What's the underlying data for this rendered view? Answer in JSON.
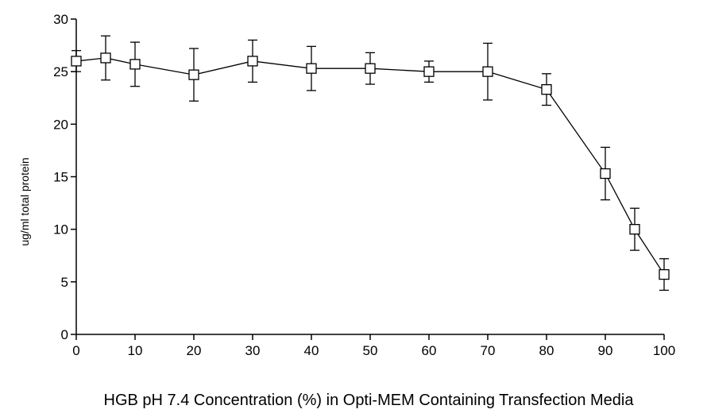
{
  "chart_data": {
    "type": "line",
    "title": "",
    "xlabel": "HGB pH 7.4 Concentration (%) in Opti-MEM Containing Transfection Media",
    "ylabel": "ug/ml total protein",
    "xlim": [
      0,
      100
    ],
    "ylim": [
      0,
      30
    ],
    "x_ticks": [
      0,
      10,
      20,
      30,
      40,
      50,
      60,
      70,
      80,
      90,
      100
    ],
    "y_ticks": [
      0,
      5,
      10,
      15,
      20,
      25,
      30
    ],
    "grid": false,
    "legend": "none",
    "marker": "open-square",
    "line_color": "#000000",
    "series": [
      {
        "x": [
          0,
          5,
          10,
          20,
          30,
          40,
          50,
          60,
          70,
          80,
          90,
          95,
          100
        ],
        "y": [
          26.0,
          26.3,
          25.7,
          24.7,
          26.0,
          25.3,
          25.3,
          25.0,
          25.0,
          23.3,
          15.3,
          10.0,
          5.7
        ],
        "error": [
          1.0,
          2.1,
          2.1,
          2.5,
          2.0,
          2.1,
          1.5,
          1.0,
          2.7,
          1.5,
          2.5,
          2.0,
          1.5
        ]
      }
    ]
  }
}
